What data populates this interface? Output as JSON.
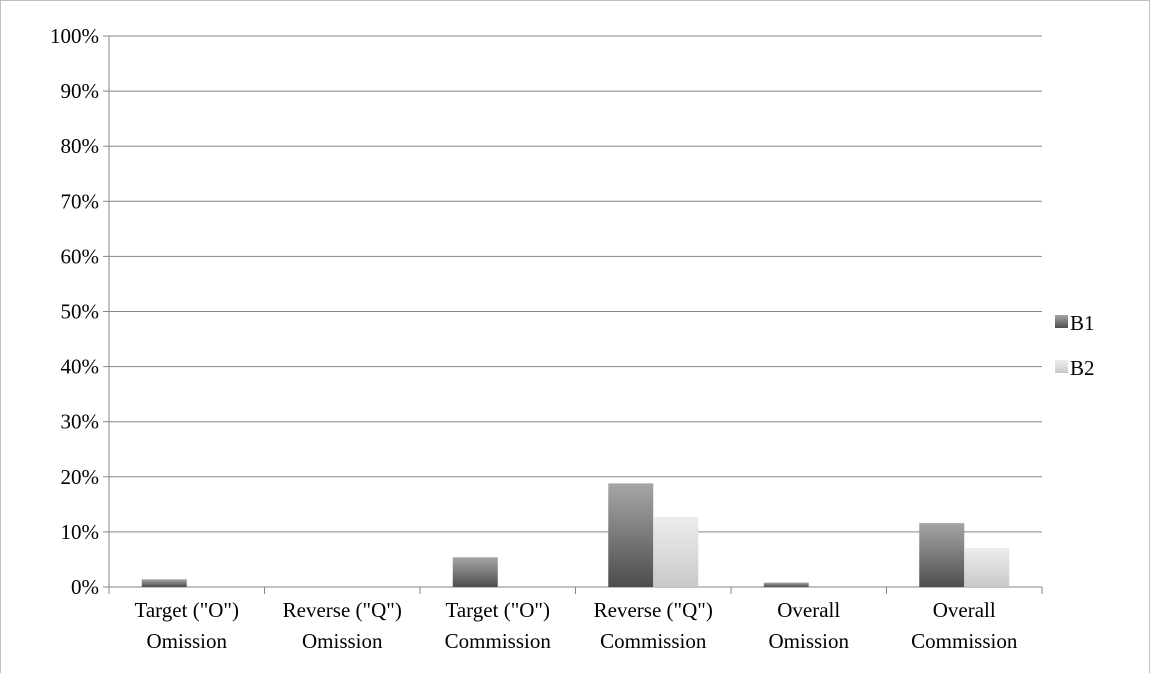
{
  "chart_data": {
    "type": "bar",
    "title": "",
    "xlabel": "",
    "ylabel": "",
    "ylim": [
      0,
      100
    ],
    "yticks": [
      "0%",
      "10%",
      "20%",
      "30%",
      "40%",
      "50%",
      "60%",
      "70%",
      "80%",
      "90%",
      "100%"
    ],
    "grid": true,
    "legend_position": "right",
    "categories": [
      [
        "Target (\"O\")",
        "Omission"
      ],
      [
        "Reverse (\"Q\")",
        "Omission"
      ],
      [
        "Target (\"O\")",
        "Commission"
      ],
      [
        "Reverse (\"Q\")",
        "Commission"
      ],
      [
        "Overall",
        "Omission"
      ],
      [
        "Overall",
        "Commission"
      ]
    ],
    "series": [
      {
        "name": "B1",
        "color": "#7f7f7f",
        "values": [
          1.4,
          0,
          5.4,
          18.8,
          0.8,
          11.6
        ]
      },
      {
        "name": "B2",
        "color": "#d9d9d9",
        "values": [
          0,
          0,
          0,
          12.7,
          0,
          7.1
        ]
      }
    ]
  }
}
